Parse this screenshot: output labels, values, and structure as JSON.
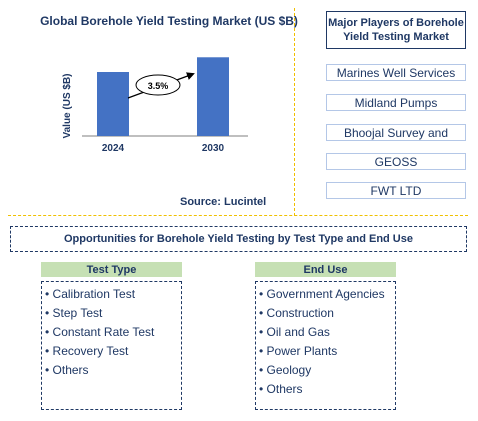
{
  "chart_data": {
    "type": "bar",
    "title": "Global Borehole Yield Testing Market (US $B)",
    "ylabel": "Value (US $B)",
    "categories": [
      "2024",
      "2030"
    ],
    "values": [
      1.0,
      1.23
    ],
    "ylim": [
      0,
      1.5
    ],
    "grid": false,
    "annotation": "3.5%",
    "bar_color": "#4472c4"
  },
  "source": "Source: Lucintel",
  "players": {
    "title": "Major Players of Borehole Yield Testing Market",
    "items": [
      "Marines Well Services",
      "Midland Pumps",
      "Bhoojal Survey and",
      "GEOSS",
      "FWT LTD"
    ]
  },
  "opportunities": {
    "title": "Opportunities for Borehole Yield Testing by Test Type and End Use",
    "test_type": {
      "heading": "Test Type",
      "items": [
        "• Calibration Test",
        "• Step Test",
        "• Constant Rate Test",
        "• Recovery Test",
        "• Others"
      ]
    },
    "end_use": {
      "heading": "End Use",
      "items": [
        "• Government Agencies",
        "• Construction",
        "• Oil and Gas",
        "• Power Plants",
        "• Geology",
        "• Others"
      ]
    }
  }
}
